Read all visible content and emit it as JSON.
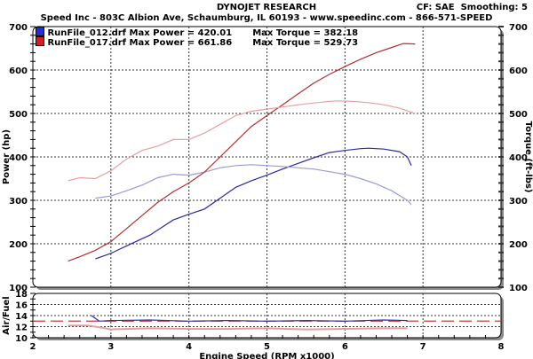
{
  "header": {
    "title": "DYNOJET RESEARCH",
    "subtitle": "Speed Inc - 803C Albion Ave, Schaumburg, IL 60193 - www.speedinc.com - 866-571-SPEED",
    "cf_label": "CF: SAE",
    "smoothing_label": "Smoothing: 5"
  },
  "legend": [
    {
      "file": "RunFile_012.drf",
      "max_power_label": "Max Power = 420.01",
      "max_torque_label": "Max Torque = 382.18",
      "color": "#2020c0"
    },
    {
      "file": "RunFile_017.drf",
      "max_power_label": "Max Power = 661.86",
      "max_torque_label": "Max Torque = 529.73",
      "color": "#d02020"
    }
  ],
  "axes": {
    "left_label": "Power (hp)",
    "right_label": "Torque (ft-lbs)",
    "afr_label": "Air/Fuel",
    "x_label": "Engine Speed (RPM x1000)",
    "y_ticks": [
      "700",
      "600",
      "500",
      "400",
      "300",
      "200",
      "100"
    ],
    "afr_ticks": [
      "18",
      "16",
      "14",
      "12",
      "10"
    ],
    "x_ticks": [
      "2",
      "3",
      "4",
      "5",
      "6",
      "7",
      "8"
    ]
  },
  "chart_data": [
    {
      "type": "line",
      "title": "DYNOJET RESEARCH",
      "xlabel": "Engine Speed (RPM x1000)",
      "ylabel": "Power (hp)",
      "y2label": "Torque (ft-lbs)",
      "xlim": [
        2,
        8
      ],
      "ylim": [
        100,
        700
      ],
      "y2lim": [
        100,
        700
      ],
      "grid": true,
      "legend_position": "top-left",
      "series": [
        {
          "name": "RunFile_012.drf Power",
          "color": "#2a2aa0",
          "x": [
            2.8,
            3.0,
            3.2,
            3.5,
            3.8,
            4.0,
            4.2,
            4.4,
            4.6,
            4.8,
            5.0,
            5.2,
            5.4,
            5.6,
            5.8,
            6.0,
            6.2,
            6.3,
            6.5,
            6.7,
            6.8,
            6.85
          ],
          "y": [
            165,
            178,
            195,
            220,
            255,
            268,
            280,
            305,
            330,
            345,
            358,
            372,
            385,
            398,
            410,
            415,
            419,
            420,
            418,
            412,
            400,
            380
          ]
        },
        {
          "name": "RunFile_012.drf Torque",
          "color": "#9a9ad8",
          "x": [
            2.8,
            3.0,
            3.2,
            3.4,
            3.6,
            3.8,
            4.0,
            4.2,
            4.4,
            4.6,
            4.8,
            5.0,
            5.2,
            5.4,
            5.6,
            5.8,
            6.0,
            6.2,
            6.4,
            6.6,
            6.8,
            6.85
          ],
          "y": [
            305,
            310,
            322,
            335,
            352,
            360,
            358,
            365,
            375,
            380,
            382,
            380,
            378,
            375,
            372,
            366,
            360,
            350,
            338,
            322,
            300,
            290
          ]
        },
        {
          "name": "RunFile_017.drf Power",
          "color": "#b03030",
          "x": [
            2.45,
            2.6,
            2.8,
            3.0,
            3.2,
            3.4,
            3.6,
            3.8,
            4.0,
            4.2,
            4.4,
            4.6,
            4.8,
            5.0,
            5.2,
            5.4,
            5.6,
            5.8,
            6.0,
            6.2,
            6.4,
            6.6,
            6.75,
            6.9
          ],
          "y": [
            160,
            170,
            185,
            205,
            235,
            265,
            295,
            320,
            340,
            365,
            400,
            435,
            470,
            495,
            520,
            545,
            570,
            590,
            608,
            625,
            640,
            652,
            661,
            660
          ]
        },
        {
          "name": "RunFile_017.drf Torque",
          "color": "#e6a0a0",
          "x": [
            2.45,
            2.6,
            2.8,
            3.0,
            3.2,
            3.4,
            3.6,
            3.8,
            4.0,
            4.2,
            4.4,
            4.6,
            4.8,
            5.0,
            5.2,
            5.4,
            5.6,
            5.8,
            5.9,
            6.1,
            6.3,
            6.5,
            6.7,
            6.9
          ],
          "y": [
            345,
            352,
            350,
            368,
            395,
            415,
            425,
            440,
            440,
            455,
            475,
            495,
            505,
            510,
            515,
            520,
            524,
            528,
            529,
            528,
            525,
            520,
            512,
            500
          ]
        }
      ]
    },
    {
      "type": "line",
      "title": "Air/Fuel",
      "xlabel": "Engine Speed (RPM x1000)",
      "ylabel": "Air/Fuel",
      "xlim": [
        2,
        8
      ],
      "ylim": [
        10,
        18
      ],
      "grid": true,
      "reference_line": {
        "value": 13.0,
        "style": "dashed",
        "color": "#c04040"
      },
      "series": [
        {
          "name": "RunFile_012.drf AFR",
          "color": "#3030a0",
          "x": [
            2.75,
            2.85,
            3.0,
            3.5,
            4.0,
            4.5,
            5.0,
            5.5,
            6.0,
            6.5,
            6.8
          ],
          "y": [
            14.0,
            13.0,
            13.1,
            13.2,
            13.0,
            13.1,
            13.0,
            13.1,
            13.0,
            13.2,
            13.1
          ]
        },
        {
          "name": "RunFile_017.drf AFR",
          "color": "#e0a0a0",
          "x": [
            2.45,
            2.7,
            2.9,
            3.0,
            3.5,
            4.0,
            4.5,
            5.0,
            5.5,
            6.0,
            6.5,
            6.8
          ],
          "y": [
            12.2,
            12.2,
            11.8,
            11.5,
            11.7,
            11.6,
            11.6,
            11.7,
            11.5,
            11.6,
            11.7,
            11.7
          ]
        }
      ]
    }
  ]
}
